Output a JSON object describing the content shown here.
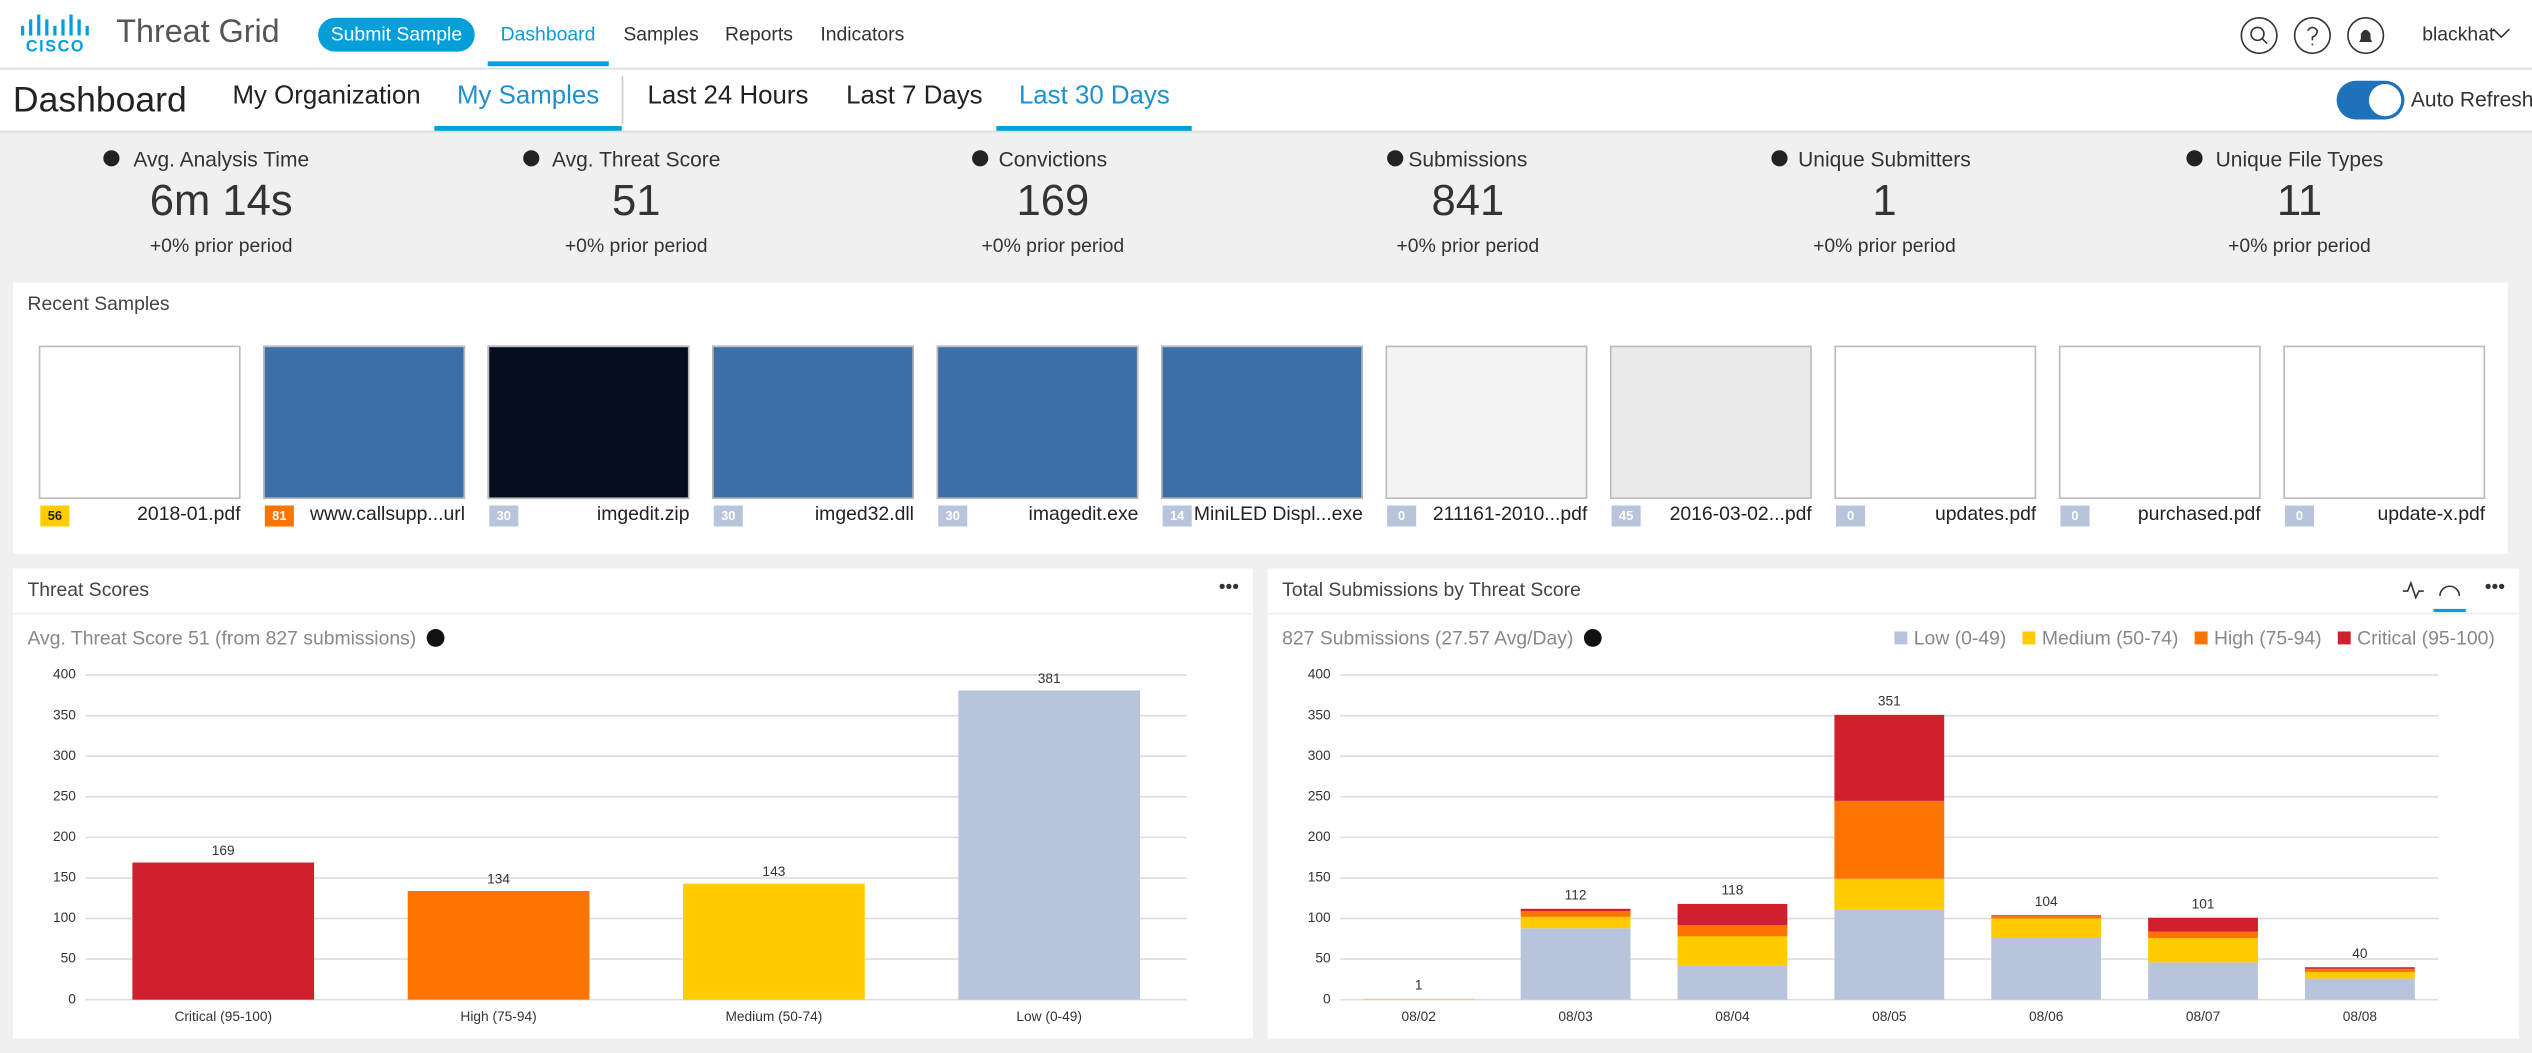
{
  "header": {
    "logo": "CISCO",
    "product": "Threat Grid",
    "submit": "Submit Sample",
    "nav": [
      "Dashboard",
      "Samples",
      "Reports",
      "Indicators"
    ],
    "user": "blackhat"
  },
  "subbar": {
    "title": "Dashboard",
    "tabs": [
      "My Organization",
      "My Samples"
    ],
    "periods": [
      "Last 24 Hours",
      "Last 7 Days",
      "Last 30 Days"
    ],
    "toggle": "Auto Refresh"
  },
  "stats": [
    {
      "label": "Avg. Analysis Time",
      "value": "6m 14s",
      "change": "+0% prior period"
    },
    {
      "label": "Avg. Threat Score",
      "value": "51",
      "change": "+0% prior period"
    },
    {
      "label": "Convictions",
      "value": "169",
      "change": "+0% prior period"
    },
    {
      "label": "Submissions",
      "value": "841",
      "change": "+0% prior period"
    },
    {
      "label": "Unique Submitters",
      "value": "1",
      "change": "+0% prior period"
    },
    {
      "label": "Unique File Types",
      "value": "11",
      "change": "+0% prior period"
    }
  ],
  "recent_samples": {
    "title": "Recent Samples",
    "items": [
      {
        "score": 56,
        "name": "2018-01.pdf"
      },
      {
        "score": 81,
        "name": "www.callsupp...url"
      },
      {
        "score": 30,
        "name": "imgedit.zip"
      },
      {
        "score": 30,
        "name": "imged32.dll"
      },
      {
        "score": 30,
        "name": "imagedit.exe"
      },
      {
        "score": 14,
        "name": "MiniLED Displ...exe"
      },
      {
        "score": 0,
        "name": "211161-2010...pdf"
      },
      {
        "score": 45,
        "name": "2016-03-02...pdf"
      },
      {
        "score": 0,
        "name": "updates.pdf"
      },
      {
        "score": 0,
        "name": "purchased.pdf"
      },
      {
        "score": 0,
        "name": "update-x.pdf"
      }
    ]
  },
  "chart_data": [
    {
      "type": "bar",
      "title": "Threat Scores",
      "subtitle": "Avg. Threat Score 51 (from 827 submissions)",
      "categories": [
        "Critical (95-100)",
        "High (75-94)",
        "Medium (50-74)",
        "Low (0-49)"
      ],
      "values": [
        169,
        134,
        143,
        381
      ],
      "colors": [
        "#d0202e",
        "#ff7300",
        "#ffcc00",
        "#b8c4db"
      ],
      "ylim": [
        0,
        400
      ],
      "yticks": [
        0,
        50,
        100,
        150,
        200,
        250,
        300,
        350,
        400
      ],
      "grid": true
    },
    {
      "type": "stacked-bar",
      "title": "Total Submissions by Threat Score",
      "subtitle": "827 Submissions (27.57 Avg/Day)",
      "categories": [
        "08/02",
        "08/03",
        "08/04",
        "08/05",
        "08/06",
        "08/07",
        "08/08"
      ],
      "series": [
        {
          "name": "Low (0-49)",
          "color": "#b8c4db",
          "values": [
            0,
            88,
            42,
            111,
            76,
            46,
            26
          ]
        },
        {
          "name": "Medium (50-74)",
          "color": "#ffcc00",
          "values": [
            1,
            14,
            36,
            38,
            24,
            30,
            8
          ]
        },
        {
          "name": "High (75-94)",
          "color": "#ff7300",
          "values": [
            0,
            7,
            14,
            96,
            3,
            8,
            4
          ]
        },
        {
          "name": "Critical (95-100)",
          "color": "#d0202e",
          "values": [
            0,
            3,
            26,
            106,
            1,
            17,
            2
          ]
        }
      ],
      "total_labels": [
        1,
        112,
        118,
        351,
        104,
        101,
        40
      ],
      "ylim": [
        0,
        400
      ],
      "yticks": [
        0,
        50,
        100,
        150,
        200,
        250,
        300,
        350,
        400
      ],
      "grid": true,
      "legend": "top-right"
    }
  ]
}
